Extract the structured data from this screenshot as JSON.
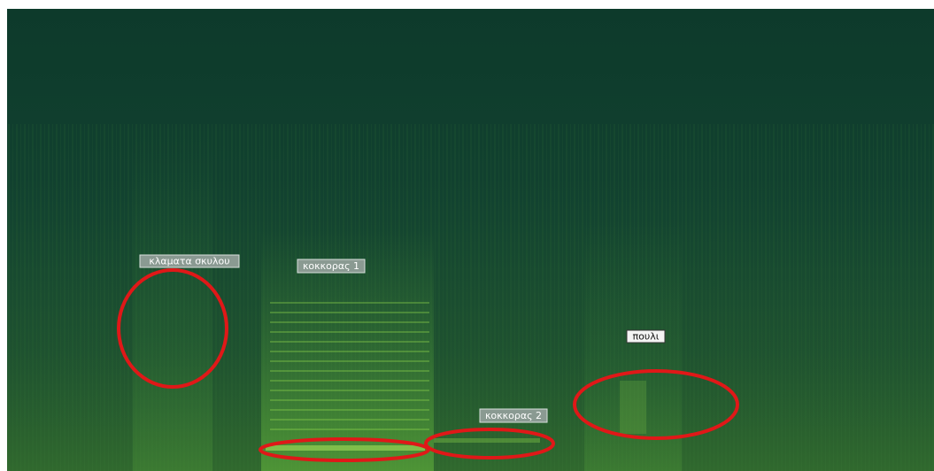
{
  "annotations": [
    {
      "label": "κλαματα σκυλου"
    },
    {
      "label": "κοκκορας 1"
    },
    {
      "label": "κοκκορας 2"
    },
    {
      "label": "πουλι"
    }
  ]
}
